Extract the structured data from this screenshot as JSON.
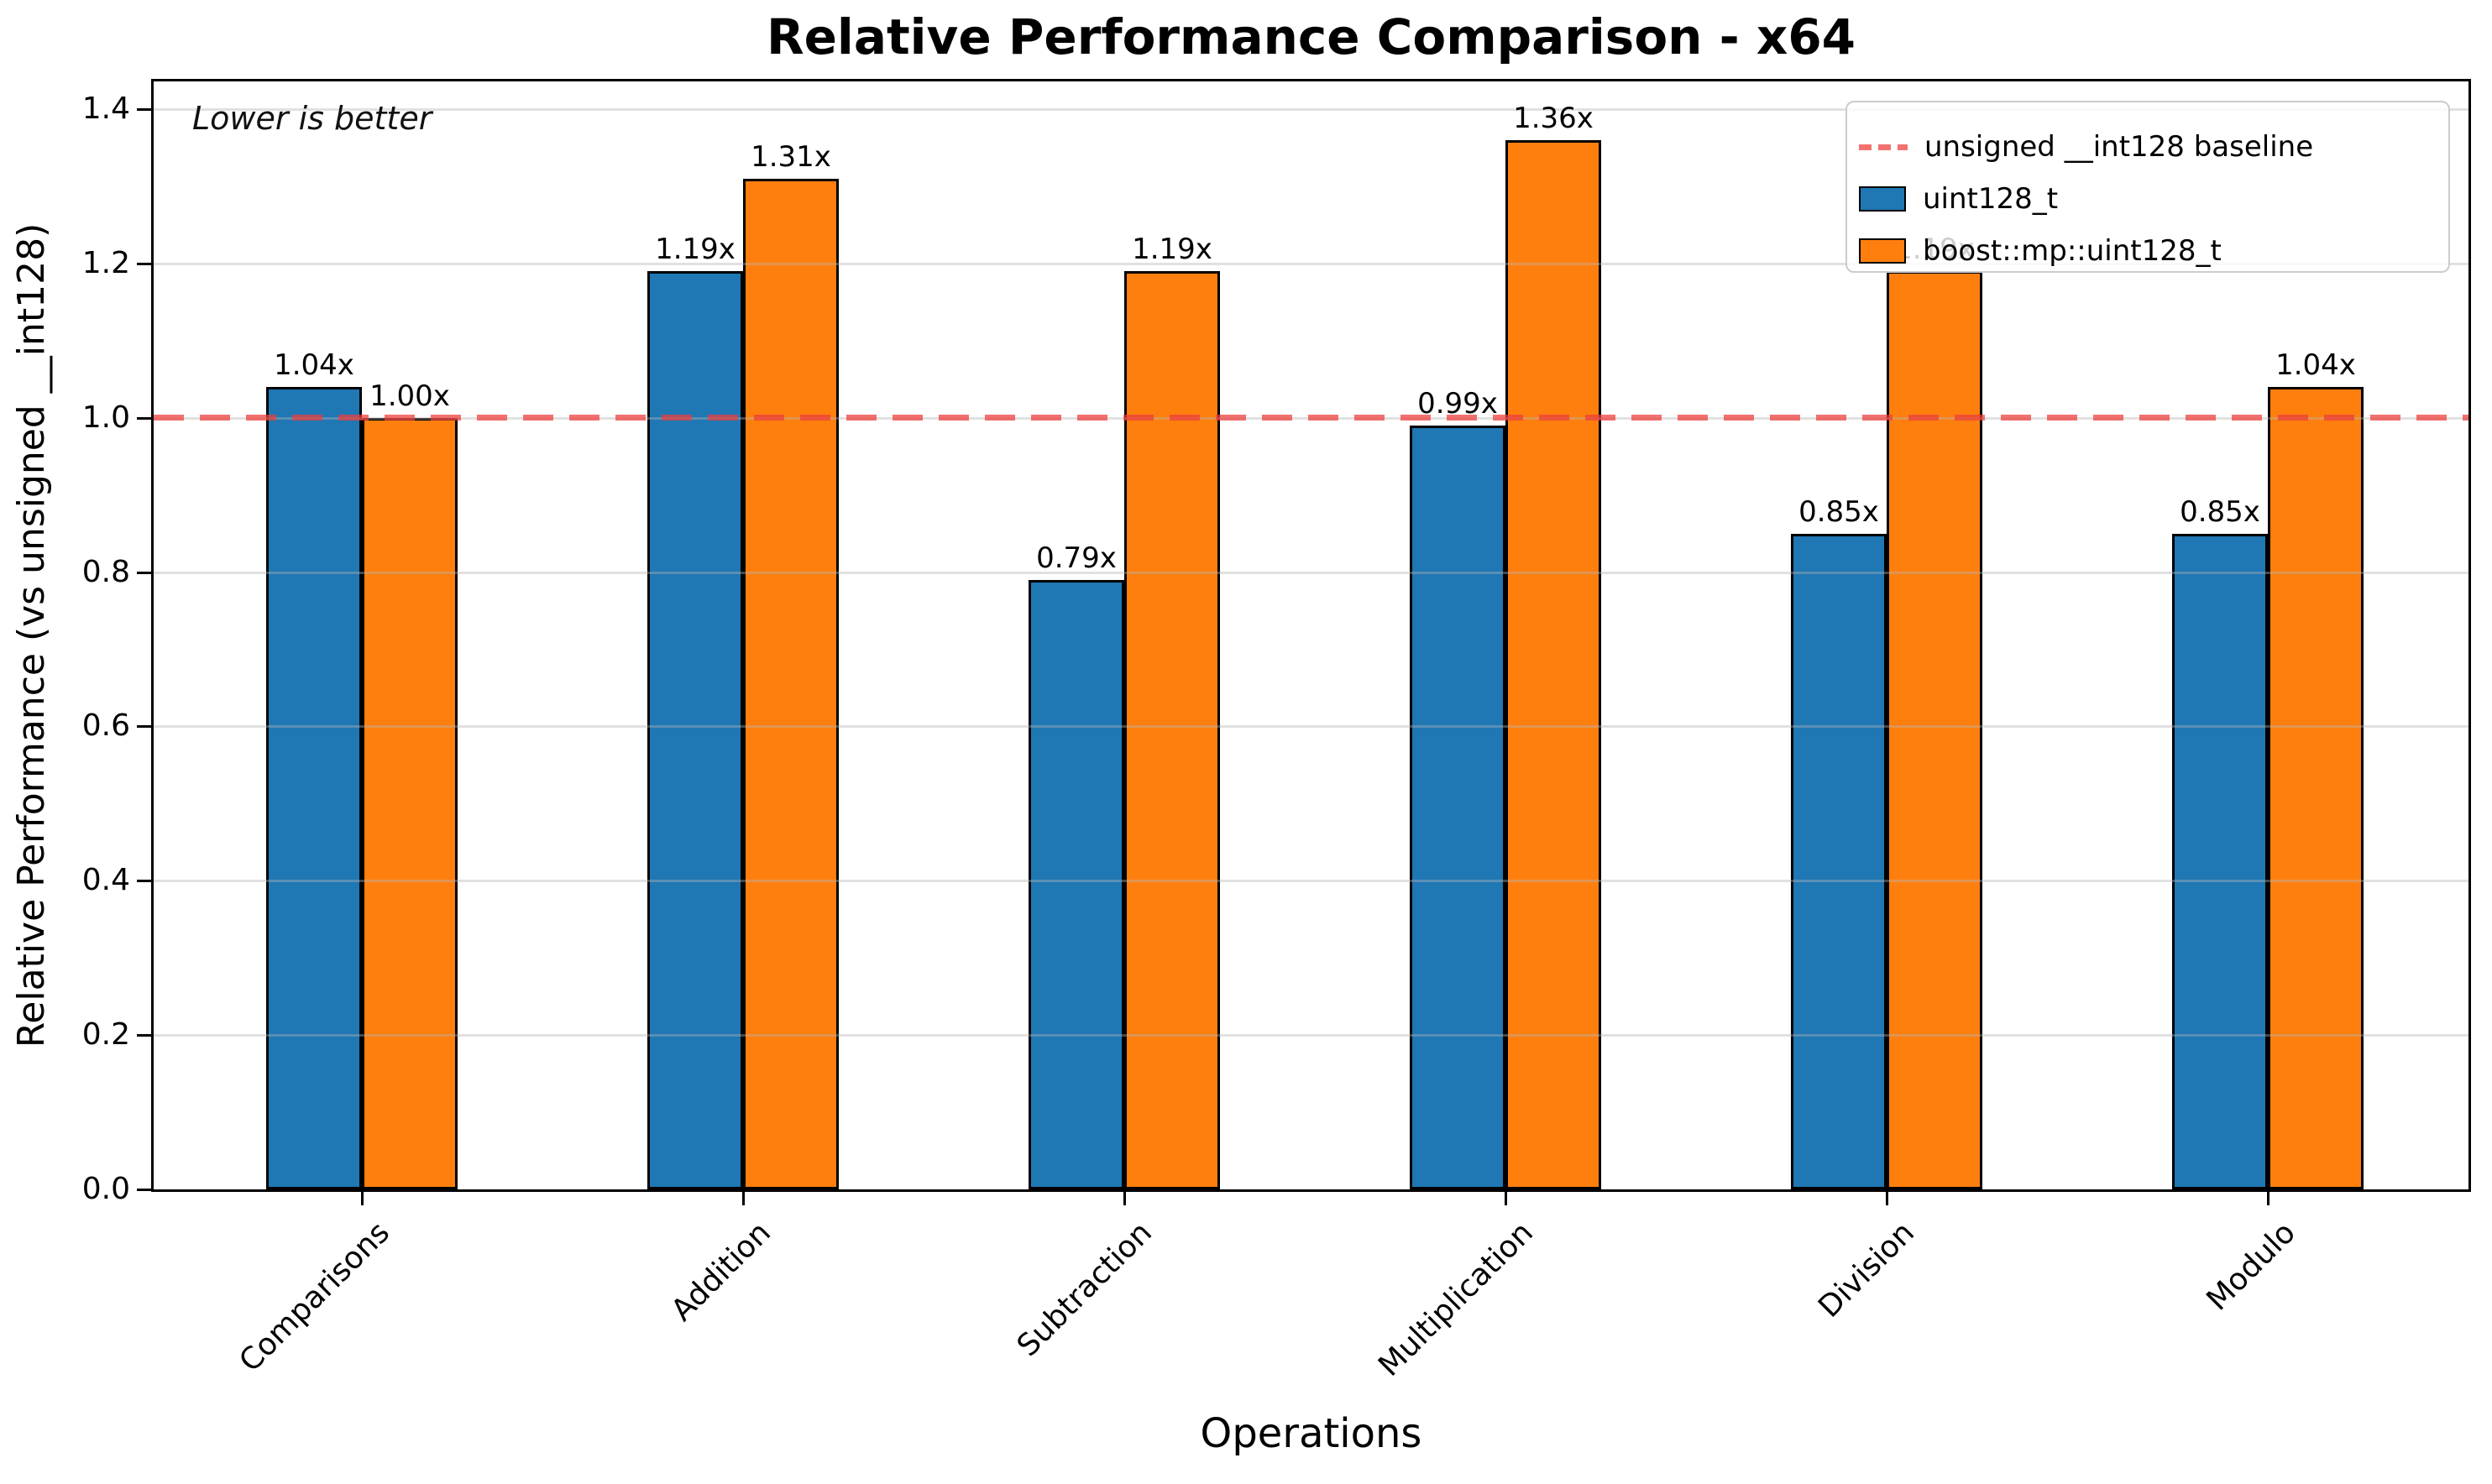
{
  "title": "Relative Performance Comparison - x64",
  "annotation": "Lower is better",
  "xlabel": "Operations",
  "ylabel": "Relative Performance (vs unsigned __int128)",
  "legend": {
    "baseline": "unsigned __int128 baseline",
    "series1": "uint128_t",
    "series2": "boost::mp::uint128_t"
  },
  "colors": {
    "series1": "#1f77b4",
    "series2": "#ff7f0e",
    "baseline_dash": "#ed3c39",
    "bar_edge": "#000000",
    "grid": "#b4b4b4",
    "legend_border": "#cccccc"
  },
  "chart_data": {
    "type": "bar",
    "title": "Relative Performance Comparison - x64",
    "xlabel": "Operations",
    "ylabel": "Relative Performance (vs unsigned __int128)",
    "annotation": "Lower is better",
    "categories": [
      "Comparisons",
      "Addition",
      "Subtraction",
      "Multiplication",
      "Division",
      "Modulo"
    ],
    "series": [
      {
        "name": "uint128_t",
        "color": "#1f77b4",
        "values": [
          1.04,
          1.19,
          0.79,
          0.99,
          0.85,
          0.85
        ]
      },
      {
        "name": "boost::mp::uint128_t",
        "color": "#ff7f0e",
        "values": [
          1.0,
          1.31,
          1.19,
          1.36,
          1.19,
          1.04
        ]
      }
    ],
    "bar_label_suffix": "x",
    "baseline": {
      "value": 1.0,
      "label": "unsigned __int128 baseline"
    },
    "ylim": [
      0,
      1.436
    ],
    "yticks": [
      0.0,
      0.2,
      0.4,
      0.6,
      0.8,
      1.0,
      1.2,
      1.4
    ],
    "grid": true,
    "grid_over_bars": true,
    "legend_position": "upper right"
  }
}
